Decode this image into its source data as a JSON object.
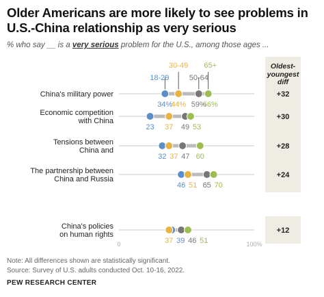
{
  "title": "Older Americans are more likely to see problems in U.S.-China relationship as very serious",
  "subtitle": {
    "prefix": "% who say __ is a ",
    "emphasis": "very serious",
    "suffix": " problem for the U.S., among those ages ..."
  },
  "diff_header": [
    "Oldest-",
    "youngest",
    "diff"
  ],
  "colors": {
    "age_18_29": "#5b8fc9",
    "age_30_49": "#e7b443",
    "age_50_64": "#777777",
    "age_65_plus": "#9dbd53",
    "track": "#bbbbbb",
    "panel": "#efece3"
  },
  "chart_data": {
    "type": "dot",
    "series_names": [
      "18-29",
      "30-49",
      "50-64",
      "65+"
    ],
    "xlim": [
      0,
      100
    ],
    "axis_labels": [
      "0",
      "100%"
    ],
    "rows": [
      {
        "label": [
          "China's military power"
        ],
        "values": [
          34,
          44,
          59,
          66
        ],
        "value_labels": [
          "34%",
          "44%",
          "59%",
          "66%"
        ],
        "diff": "+32"
      },
      {
        "label": [
          "Economic competition",
          "with China"
        ],
        "values": [
          23,
          37,
          49,
          53
        ],
        "value_labels": [
          "23",
          "37",
          "49",
          "53"
        ],
        "diff": "+30"
      },
      {
        "label": [
          "Tensions between",
          "China and"
        ],
        "values": [
          32,
          37,
          47,
          60
        ],
        "value_labels": [
          "32",
          "37",
          "47",
          "60"
        ],
        "diff": "+28"
      },
      {
        "label": [
          "The partnership between",
          "China and Russia"
        ],
        "values": [
          46,
          51,
          65,
          70
        ],
        "value_labels": [
          "46",
          "51",
          "65",
          "70"
        ],
        "diff": "+24"
      },
      {
        "label": [
          "China's policies",
          "on human rights"
        ],
        "values": [
          39,
          37,
          46,
          51
        ],
        "value_labels": [
          "39",
          "37",
          "46",
          "51"
        ],
        "diff": "+12"
      }
    ]
  },
  "notes": {
    "note": "Note: All differences shown are statistically significant.",
    "source": "Source: Survey of U.S. adults conducted Oct. 10-16, 2022.",
    "org": "PEW RESEARCH CENTER"
  }
}
